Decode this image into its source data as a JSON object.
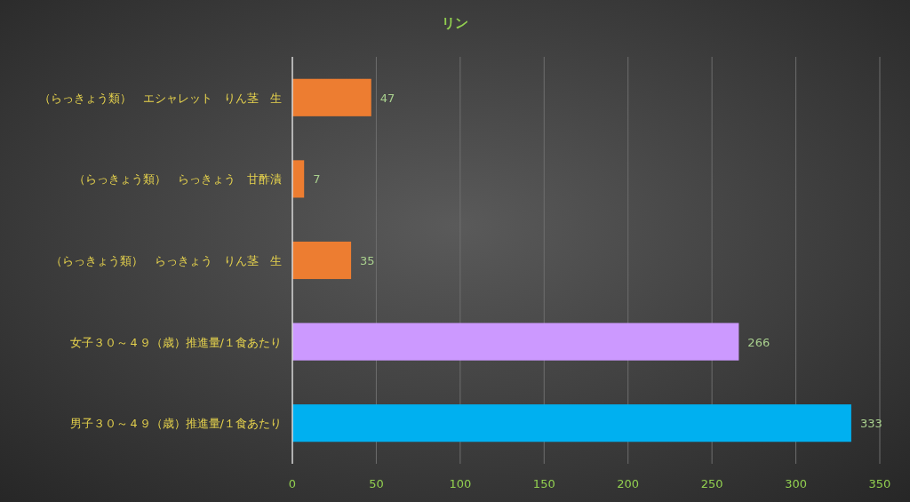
{
  "chart_data": {
    "type": "bar",
    "orientation": "horizontal",
    "title": "リン",
    "categories": [
      "（らっきょう類）　エシャレット　りん茎　生",
      "（らっきょう類）　らっきょう　甘酢漬",
      "（らっきょう類）　らっきょう　りん茎　生",
      "女子３０～４９（歳）推進量/１食あたり",
      "男子３０～４９（歳）推進量/１食あたり"
    ],
    "values": [
      47,
      7,
      35,
      266,
      333
    ],
    "colors": [
      "#ed7d31",
      "#ed7d31",
      "#ed7d31",
      "#cc99ff",
      "#00b0f0"
    ],
    "xlim": [
      0,
      350
    ],
    "xticks": [
      0,
      50,
      100,
      150,
      200,
      250,
      300,
      350
    ],
    "grid": "x",
    "data_labels": true
  }
}
